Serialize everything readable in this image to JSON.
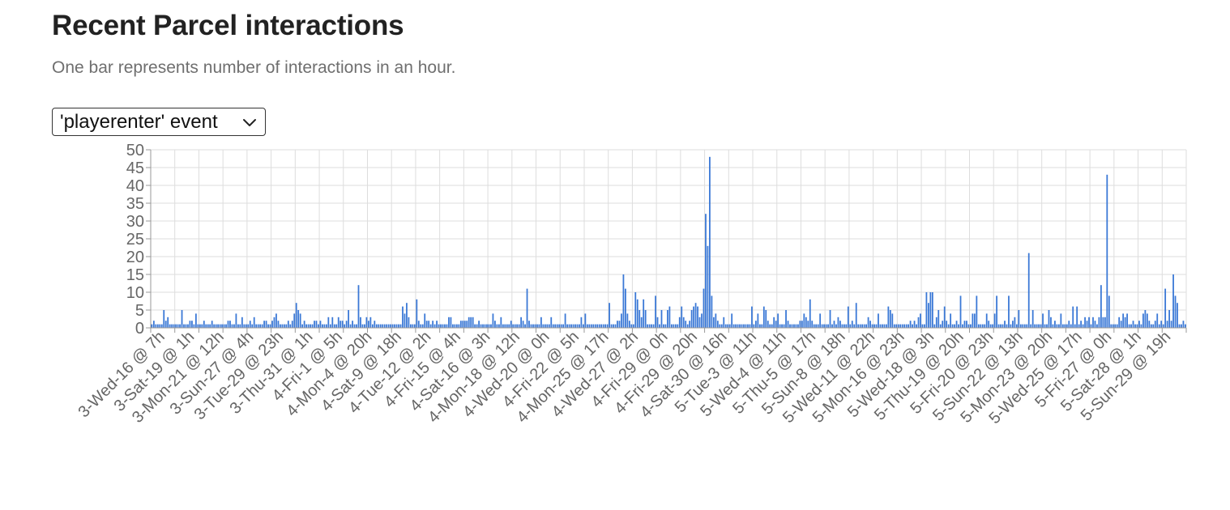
{
  "header": {
    "title": "Recent Parcel interactions",
    "subtitle": "One bar represents number of interactions in an hour."
  },
  "event_select": {
    "selected_label": "'playerenter' event"
  },
  "colors": {
    "bar": "#3a78d6",
    "grid": "#dddddd",
    "axis": "#999999",
    "tick_text": "#666666"
  },
  "chart_data": {
    "type": "bar",
    "ylim": [
      0,
      50
    ],
    "yticks": [
      0,
      5,
      10,
      15,
      20,
      25,
      30,
      35,
      40,
      45,
      50
    ],
    "grid": true,
    "x_tick_labels": [
      "3-Wed-16 @ 7h",
      "3-Sat-19 @ 1h",
      "3-Mon-21 @ 12h",
      "3-Sun-27 @ 4h",
      "3-Tue-29 @ 23h",
      "3-Thu-31 @ 1h",
      "4-Fri-1 @ 5h",
      "4-Mon-4 @ 20h",
      "4-Sat-9 @ 18h",
      "4-Tue-12 @ 2h",
      "4-Fri-15 @ 4h",
      "4-Sat-16 @ 3h",
      "4-Mon-18 @ 12h",
      "4-Wed-20 @ 0h",
      "4-Fri-22 @ 5h",
      "4-Mon-25 @ 17h",
      "4-Wed-27 @ 2h",
      "4-Fri-29 @ 0h",
      "4-Fri-29 @ 20h",
      "4-Sat-30 @ 16h",
      "5-Tue-3 @ 11h",
      "5-Wed-4 @ 11h",
      "5-Thu-5 @ 17h",
      "5-Sun-8 @ 18h",
      "5-Wed-11 @ 22h",
      "5-Mon-16 @ 23h",
      "5-Wed-18 @ 3h",
      "5-Thu-19 @ 20h",
      "5-Fri-20 @ 23h",
      "5-Sun-22 @ 13h",
      "5-Mon-23 @ 20h",
      "5-Wed-25 @ 17h",
      "5-Fri-27 @ 0h",
      "5-Sat-28 @ 1h",
      "5-Sun-29 @ 19h"
    ],
    "values": [
      1,
      2,
      1,
      1,
      1,
      1,
      5,
      2,
      3,
      1,
      1,
      1,
      1,
      1,
      1,
      5,
      1,
      1,
      1,
      2,
      2,
      1,
      4,
      1,
      1,
      1,
      2,
      1,
      1,
      1,
      2,
      1,
      1,
      1,
      1,
      1,
      1,
      1,
      2,
      2,
      1,
      1,
      4,
      1,
      1,
      3,
      1,
      1,
      1,
      2,
      1,
      3,
      1,
      1,
      1,
      1,
      2,
      2,
      1,
      1,
      2,
      3,
      4,
      2,
      1,
      1,
      1,
      1,
      2,
      1,
      2,
      4,
      7,
      5,
      4,
      1,
      2,
      1,
      1,
      1,
      1,
      2,
      2,
      1,
      2,
      1,
      1,
      1,
      3,
      1,
      3,
      1,
      1,
      3,
      2,
      2,
      1,
      2,
      5,
      1,
      2,
      1,
      1,
      12,
      3,
      1,
      1,
      3,
      2,
      3,
      1,
      2,
      1,
      1,
      1,
      1,
      1,
      1,
      1,
      1,
      1,
      1,
      1,
      1,
      1,
      6,
      4,
      7,
      3,
      1,
      1,
      1,
      8,
      2,
      1,
      1,
      4,
      2,
      2,
      1,
      2,
      1,
      2,
      1,
      1,
      1,
      1,
      1,
      3,
      3,
      1,
      1,
      1,
      1,
      2,
      2,
      2,
      2,
      3,
      3,
      3,
      1,
      1,
      2,
      1,
      1,
      1,
      1,
      1,
      1,
      4,
      2,
      1,
      1,
      3,
      1,
      1,
      1,
      1,
      2,
      1,
      1,
      1,
      1,
      3,
      2,
      1,
      11,
      2,
      1,
      1,
      1,
      1,
      1,
      3,
      1,
      1,
      1,
      1,
      3,
      1,
      1,
      1,
      1,
      1,
      1,
      4,
      1,
      1,
      1,
      1,
      1,
      1,
      1,
      3,
      1,
      4,
      1,
      1,
      1,
      1,
      1,
      1,
      1,
      1,
      1,
      1,
      1,
      7,
      1,
      1,
      1,
      2,
      2,
      4,
      15,
      11,
      4,
      2,
      1,
      1,
      10,
      8,
      5,
      3,
      8,
      5,
      1,
      1,
      1,
      1,
      9,
      3,
      1,
      5,
      1,
      1,
      5,
      6,
      1,
      1,
      1,
      1,
      3,
      6,
      3,
      2,
      1,
      2,
      5,
      6,
      7,
      6,
      3,
      4,
      11,
      32,
      23,
      48,
      9,
      3,
      4,
      2,
      1,
      1,
      3,
      1,
      1,
      1,
      4,
      1,
      1,
      1,
      1,
      1,
      1,
      1,
      1,
      1,
      6,
      1,
      2,
      4,
      1,
      1,
      6,
      5,
      2,
      1,
      1,
      3,
      2,
      4,
      1,
      1,
      1,
      5,
      2,
      1,
      1,
      1,
      1,
      1,
      2,
      2,
      4,
      3,
      2,
      8,
      2,
      1,
      1,
      1,
      4,
      1,
      1,
      1,
      1,
      5,
      1,
      2,
      1,
      3,
      2,
      1,
      1,
      1,
      6,
      1,
      2,
      1,
      7,
      1,
      1,
      1,
      1,
      1,
      3,
      2,
      1,
      1,
      1,
      4,
      1,
      1,
      1,
      1,
      6,
      5,
      4,
      1,
      1,
      1,
      1,
      1,
      1,
      1,
      1,
      2,
      1,
      2,
      1,
      3,
      4,
      1,
      1,
      10,
      7,
      10,
      10,
      1,
      3,
      5,
      1,
      2,
      6,
      2,
      1,
      4,
      1,
      1,
      2,
      1,
      9,
      1,
      2,
      2,
      1,
      1,
      4,
      4,
      9,
      1,
      1,
      1,
      1,
      4,
      2,
      1,
      1,
      4,
      9,
      1,
      1,
      1,
      2,
      1,
      9,
      1,
      2,
      3,
      1,
      5,
      1,
      1,
      1,
      1,
      21,
      1,
      5,
      1,
      1,
      1,
      1,
      4,
      1,
      1,
      5,
      3,
      1,
      2,
      1,
      1,
      4,
      1,
      1,
      1,
      2,
      1,
      6,
      1,
      6,
      1,
      2,
      1,
      3,
      2,
      3,
      1,
      3,
      2,
      1,
      3,
      12,
      3,
      3,
      43,
      9,
      1,
      1,
      1,
      1,
      3,
      2,
      4,
      3,
      4,
      1,
      1,
      2,
      1,
      1,
      2,
      1,
      4,
      5,
      4,
      2,
      1,
      1,
      2,
      4,
      1,
      2,
      1,
      11,
      2,
      5,
      2,
      15,
      9,
      7,
      1,
      1,
      2,
      1
    ]
  }
}
